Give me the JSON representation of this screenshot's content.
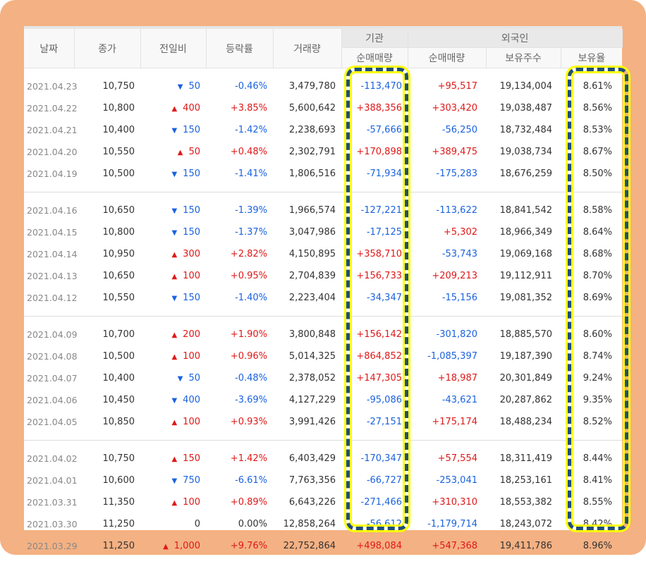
{
  "headers": {
    "date": "날짜",
    "close": "종가",
    "change": "전일비",
    "rate": "등락률",
    "volume": "거래량",
    "inst": "기관",
    "foreign": "외국인",
    "inst_net": "순매매량",
    "for_net": "순매매량",
    "for_hold": "보유주수",
    "for_ratio": "보유율"
  },
  "colors": {
    "up": "#e01818",
    "down": "#1a62e0",
    "highlight_outline": "#ffff00",
    "highlight_dash": "#1f4e79"
  },
  "groups": [
    [
      [
        "2021.04.23",
        "10,750",
        "down",
        "50",
        "-0.46%",
        "3,479,780",
        "-113,470",
        "+95,517",
        "19,134,004",
        "8.61%"
      ],
      [
        "2021.04.22",
        "10,800",
        "up",
        "400",
        "+3.85%",
        "5,600,642",
        "+388,356",
        "+303,420",
        "19,038,487",
        "8.56%"
      ],
      [
        "2021.04.21",
        "10,400",
        "down",
        "150",
        "-1.42%",
        "2,238,693",
        "-57,666",
        "-56,250",
        "18,732,484",
        "8.53%"
      ],
      [
        "2021.04.20",
        "10,550",
        "up",
        "50",
        "+0.48%",
        "2,302,791",
        "+170,898",
        "+389,475",
        "19,038,734",
        "8.67%"
      ],
      [
        "2021.04.19",
        "10,500",
        "down",
        "150",
        "-1.41%",
        "1,806,516",
        "-71,934",
        "-175,283",
        "18,676,259",
        "8.50%"
      ]
    ],
    [
      [
        "2021.04.16",
        "10,650",
        "down",
        "150",
        "-1.39%",
        "1,966,574",
        "-127,221",
        "-113,622",
        "18,841,542",
        "8.58%"
      ],
      [
        "2021.04.15",
        "10,800",
        "down",
        "150",
        "-1.37%",
        "3,047,986",
        "-17,125",
        "+5,302",
        "18,966,349",
        "8.64%"
      ],
      [
        "2021.04.14",
        "10,950",
        "up",
        "300",
        "+2.82%",
        "4,150,895",
        "+358,710",
        "-53,743",
        "19,069,168",
        "8.68%"
      ],
      [
        "2021.04.13",
        "10,650",
        "up",
        "100",
        "+0.95%",
        "2,704,839",
        "+156,733",
        "+209,213",
        "19,112,911",
        "8.70%"
      ],
      [
        "2021.04.12",
        "10,550",
        "down",
        "150",
        "-1.40%",
        "2,223,404",
        "-34,347",
        "-15,156",
        "19,081,352",
        "8.69%"
      ]
    ],
    [
      [
        "2021.04.09",
        "10,700",
        "up",
        "200",
        "+1.90%",
        "3,800,848",
        "+156,142",
        "-301,820",
        "18,885,570",
        "8.60%"
      ],
      [
        "2021.04.08",
        "10,500",
        "up",
        "100",
        "+0.96%",
        "5,014,325",
        "+864,852",
        "-1,085,397",
        "19,187,390",
        "8.74%"
      ],
      [
        "2021.04.07",
        "10,400",
        "down",
        "50",
        "-0.48%",
        "2,378,052",
        "+147,305",
        "+18,987",
        "20,301,849",
        "9.24%"
      ],
      [
        "2021.04.06",
        "10,450",
        "down",
        "400",
        "-3.69%",
        "4,127,229",
        "-95,086",
        "-43,621",
        "20,287,862",
        "9.35%"
      ],
      [
        "2021.04.05",
        "10,850",
        "up",
        "100",
        "+0.93%",
        "3,991,426",
        "-27,151",
        "+175,174",
        "18,488,234",
        "8.52%"
      ]
    ],
    [
      [
        "2021.04.02",
        "10,750",
        "up",
        "150",
        "+1.42%",
        "6,403,429",
        "-170,347",
        "+57,554",
        "18,311,419",
        "8.44%"
      ],
      [
        "2021.04.01",
        "10,600",
        "down",
        "750",
        "-6.61%",
        "7,763,356",
        "-66,727",
        "-253,041",
        "18,253,161",
        "8.41%"
      ],
      [
        "2021.03.31",
        "11,350",
        "up",
        "100",
        "+0.89%",
        "6,643,226",
        "-271,466",
        "+310,310",
        "18,553,382",
        "8.55%"
      ],
      [
        "2021.03.30",
        "11,250",
        "flat",
        "0",
        "0.00%",
        "12,858,264",
        "-56,612",
        "-1,179,714",
        "18,243,072",
        "8.42%"
      ],
      [
        "2021.03.29",
        "11,250",
        "up",
        "1,000",
        "+9.76%",
        "22,752,864",
        "+498,084",
        "+547,368",
        "19,411,786",
        "8.96%"
      ]
    ]
  ]
}
